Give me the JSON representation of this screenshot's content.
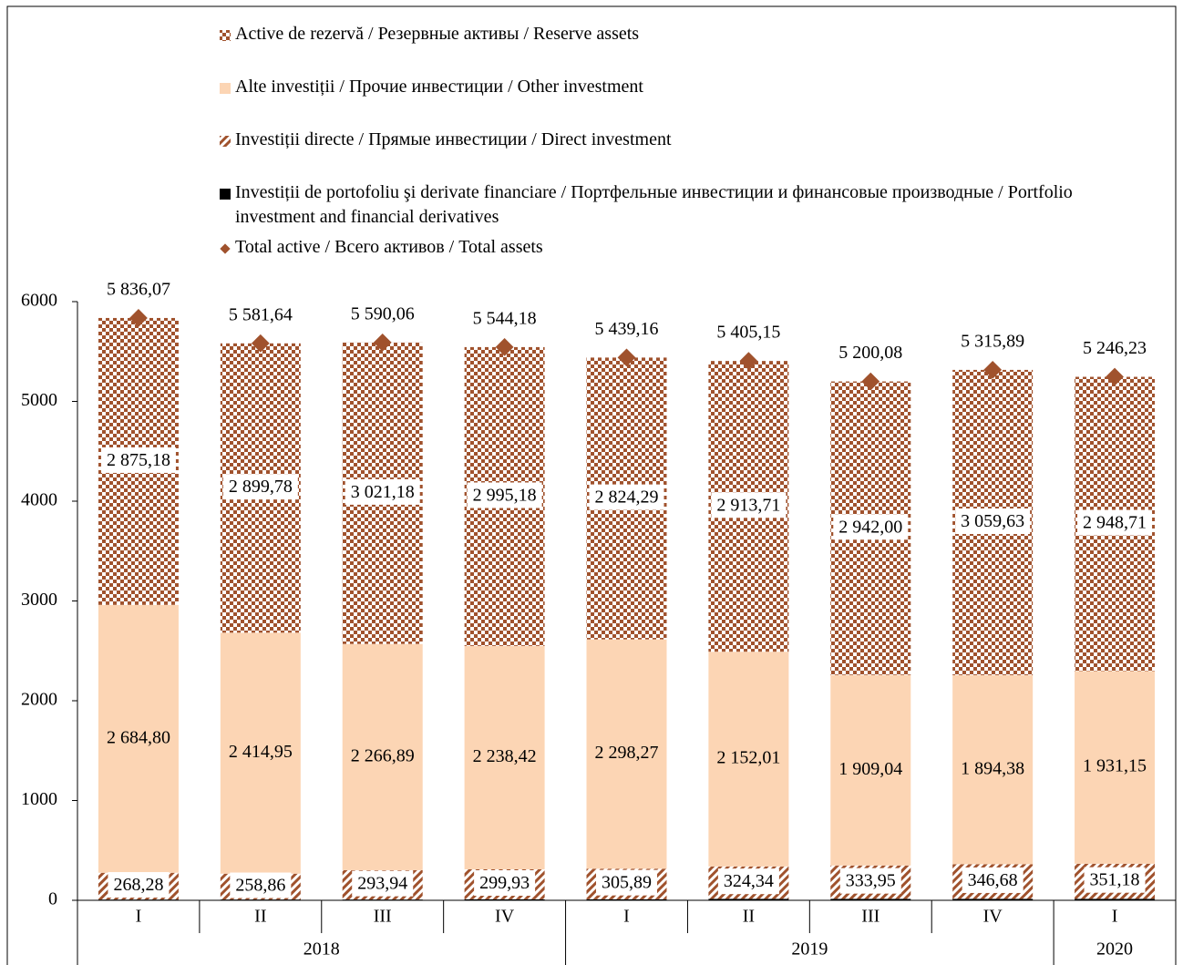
{
  "chart_data": {
    "type": "stacked_bar",
    "groups": [
      {
        "name": "2018",
        "categories": [
          "I",
          "II",
          "III",
          "IV"
        ]
      },
      {
        "name": "2019",
        "categories": [
          "I",
          "II",
          "III",
          "IV"
        ]
      },
      {
        "name": "2020",
        "categories": [
          "I"
        ]
      }
    ],
    "series": [
      {
        "name": "Investiții de portofoliu şi derivate financiare / Портфельные инвестиции и финансовые производные / Portfolio investment and financial derivatives",
        "color": "#000000",
        "pattern": "solid",
        "values": [
          7.81,
          8.05,
          8.05,
          10.65,
          10.71,
          15.09,
          15.09,
          15.2,
          15.19
        ]
      },
      {
        "name": "Investiții directe /  Прямые инвестиции / Direct investment",
        "color": "#a0522d",
        "pattern": "hatch",
        "label_background": "#ffffff",
        "values": [
          268.28,
          258.86,
          293.94,
          299.93,
          305.89,
          324.34,
          333.95,
          346.68,
          351.18
        ],
        "value_labels": [
          "268,28",
          "258,86",
          "293,94",
          "299,93",
          "305,89",
          "324,34",
          "333,95",
          "346,68",
          "351,18"
        ]
      },
      {
        "name": "Alte investiții / Прочие инвестиции / Other investment",
        "color": "#fcd5b4",
        "pattern": "solid",
        "values": [
          2684.8,
          2414.95,
          2266.89,
          2238.42,
          2298.27,
          2152.01,
          1909.04,
          1894.38,
          1931.15
        ],
        "value_labels": [
          "2 684,80",
          "2 414,95",
          "2 266,89",
          "2 238,42",
          "2 298,27",
          "2 152,01",
          "1 909,04",
          "1 894,38",
          "1 931,15"
        ]
      },
      {
        "name": "Active de rezervă / Резервные активы / Reserve assets",
        "color": "#a0522d",
        "pattern": "checker",
        "label_background": "#ffffff",
        "values": [
          2875.18,
          2899.78,
          3021.18,
          2995.18,
          2824.29,
          2913.71,
          2942.0,
          3059.63,
          2948.71
        ],
        "value_labels": [
          "2 875,18",
          "2 899,78",
          "3 021,18",
          "2 995,18",
          "2 824,29",
          "2 913,71",
          "2 942,00",
          "3 059,63",
          "2 948,71"
        ]
      }
    ],
    "total": {
      "name": "Total active / Всего активов / Total assets",
      "color": "#a0522d",
      "values": [
        5836.07,
        5581.64,
        5590.06,
        5544.18,
        5439.16,
        5405.15,
        5200.08,
        5315.89,
        5246.23
      ],
      "value_labels": [
        "5 836,07",
        "5 581,64",
        "5 590,06",
        "5 544,18",
        "5 439,16",
        "5 405,15",
        "5 200,08",
        "5 315,89",
        "5 246,23"
      ]
    },
    "ylim": [
      0,
      6000
    ],
    "yticks": [
      0,
      1000,
      2000,
      3000,
      4000,
      5000,
      6000
    ],
    "grid": false
  }
}
